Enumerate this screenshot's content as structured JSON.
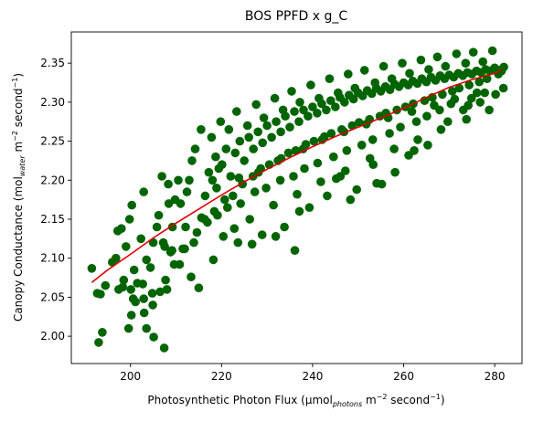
{
  "chart_data": {
    "type": "scatter",
    "title": "BOS PPFD x g_C",
    "xlabel": {
      "prefix": "Photosynthetic Photon Flux (µmol",
      "sub": "photons",
      "mid1": " m",
      "sup1": "−2",
      "mid2": " second",
      "sup2": "−1",
      "suffix": ")"
    },
    "ylabel": {
      "prefix": "Canopy Conductance (mol",
      "sub": "water",
      "mid1": " m",
      "sup1": "−2",
      "mid2": " second",
      "sup2": "−1",
      "suffix": ")"
    },
    "xlim": [
      187,
      286
    ],
    "ylim": [
      1.965,
      2.39
    ],
    "x_ticks": [
      200,
      220,
      240,
      260,
      280
    ],
    "y_ticks": [
      2.0,
      2.05,
      2.1,
      2.15,
      2.2,
      2.25,
      2.3,
      2.35
    ],
    "grid": false,
    "scatter_color": "#006400",
    "fit_color": "#e00000",
    "fit_curve": {
      "x": [
        191.5,
        195,
        200,
        205,
        210,
        215,
        220,
        225,
        230,
        235,
        240,
        245,
        250,
        255,
        260,
        265,
        270,
        275,
        280,
        281.5
      ],
      "y": [
        2.069,
        2.085,
        2.105,
        2.126,
        2.145,
        2.163,
        2.181,
        2.198,
        2.214,
        2.229,
        2.243,
        2.256,
        2.268,
        2.28,
        2.292,
        2.306,
        2.319,
        2.329,
        2.337,
        2.341
      ]
    },
    "points": {
      "x": [
        191.5,
        192.7,
        193.4,
        193.8,
        194.5,
        196.0,
        197.2,
        198.0,
        199.0,
        199.8,
        200.3,
        200.8,
        201.5,
        202.3,
        202.9,
        203.5,
        204.4,
        205.0,
        205.8,
        206.2,
        206.9,
        207.5,
        208.4,
        209.2,
        209.8,
        210.5,
        211.0,
        212.4,
        212.9,
        213.5,
        193.0,
        197.4,
        196.8,
        198.3,
        200.2,
        201.1,
        202.7,
        204.8,
        206.5,
        207.7,
        209.6,
        211.5,
        213.3,
        215.0,
        203.5,
        205.1,
        199.6,
        200.6,
        208.3,
        209.1,
        213.9,
        215.6,
        216.4,
        217.2,
        218.0,
        218.7,
        219.4,
        220.1,
        221.0,
        222.0,
        223.0,
        224.0,
        225.0,
        226.0,
        227.0,
        228.0,
        229.0,
        230.0,
        231.0,
        232.0,
        233.0,
        234.0,
        235.0,
        236.0,
        237.0,
        238.0,
        239.0,
        240.0,
        241.0,
        242.0,
        243.0,
        244.0,
        245.0,
        246.0,
        247.0,
        248.0,
        249.0,
        250.0,
        251.0,
        252.0,
        253.0,
        254.0,
        255.0,
        256.0,
        257.0,
        258.0,
        259.0,
        260.0,
        261.0,
        262.0,
        263.0,
        264.0,
        265.0,
        266.0,
        267.0,
        268.0,
        269.0,
        270.0,
        271.0,
        272.0,
        273.0,
        274.0,
        275.0,
        276.0,
        277.0,
        278.0,
        279.0,
        280.0,
        281.0,
        282.0,
        216.3,
        218.4,
        220.7,
        222.5,
        224.6,
        226.9,
        228.1,
        230.5,
        232.4,
        234.7,
        236.3,
        238.5,
        240.3,
        242.6,
        244.1,
        246.4,
        248.7,
        250.2,
        252.5,
        254.8,
        256.1,
        258.5,
        260.4,
        262.1,
        264.6,
        266.3,
        268.5,
        270.7,
        272.2,
        274.4,
        276.6,
        278.3,
        280.8,
        281.5,
        214.2,
        217.8,
        221.6,
        225.7,
        229.3,
        233.5,
        237.2,
        241.4,
        245.6,
        249.3,
        253.7,
        257.4,
        261.3,
        265.5,
        269.2,
        273.6,
        277.4,
        215.5,
        219.8,
        223.3,
        227.6,
        231.7,
        235.4,
        239.6,
        243.7,
        247.8,
        251.4,
        255.6,
        259.7,
        263.8,
        267.4,
        271.6,
        275.3,
        279.5,
        218.9,
        223.8,
        228.6,
        233.1,
        237.9,
        242.1,
        246.9,
        251.8,
        256.6,
        261.8,
        266.7,
        271.2,
        276.1,
        220.4,
        226.2,
        231.4,
        236.6,
        241.8,
        247.2,
        252.6,
        257.9,
        263.1,
        268.2,
        273.8,
        278.8,
        207.2,
        208.8,
        212.1,
        214.6,
        216.9,
        219.1,
        221.3,
        224.2,
        227.3,
        229.8,
        232.9,
        235.8,
        238.2,
        241.1,
        244.6,
        247.5,
        250.8,
        253.2,
        256.9,
        259.3,
        262.8,
        265.1,
        267.9,
        270.4,
        274.9,
        277.8,
        281.9,
        254.1,
        258.1,
        249.7,
        245.2,
        262.3,
        265.3,
        231.9,
        237.1,
        218.2,
        210.8,
        226.7,
        236.1,
        248.3,
        239.3,
        243.2,
        253.3,
        261.1,
        222.8,
        211.9,
        233.8,
        228.9,
        223.6,
        246.1,
        255.2,
        269.7,
        273.1,
        274.2,
        276.8,
        280.2,
        207.4,
        208.0,
        202.9,
        200.1,
        198.5,
        203.0,
        204.9
      ],
      "y": [
        2.087,
        2.055,
        2.054,
        2.005,
        2.065,
        2.095,
        2.135,
        2.138,
        2.115,
        2.15,
        2.168,
        2.085,
        2.068,
        2.125,
        2.185,
        2.098,
        2.088,
        2.12,
        2.14,
        2.155,
        2.205,
        2.115,
        2.17,
        2.14,
        2.175,
        2.2,
        2.17,
        2.185,
        2.2,
        2.225,
        1.992,
        2.06,
        2.1,
        2.063,
        2.027,
        2.044,
        2.067,
        2.055,
        2.057,
        2.072,
        2.092,
        2.112,
        2.076,
        2.062,
        2.01,
        1.999,
        2.01,
        2.048,
        2.195,
        2.11,
        2.12,
        2.152,
        2.18,
        2.21,
        2.2,
        2.23,
        2.215,
        2.22,
        2.24,
        2.205,
        2.235,
        2.25,
        2.225,
        2.255,
        2.24,
        2.262,
        2.248,
        2.27,
        2.255,
        2.275,
        2.262,
        2.282,
        2.268,
        2.288,
        2.275,
        2.29,
        2.282,
        2.294,
        2.286,
        2.298,
        2.29,
        2.302,
        2.294,
        2.306,
        2.3,
        2.309,
        2.304,
        2.312,
        2.308,
        2.315,
        2.311,
        2.318,
        2.314,
        2.32,
        2.316,
        2.323,
        2.32,
        2.325,
        2.322,
        2.327,
        2.324,
        2.33,
        2.326,
        2.332,
        2.328,
        2.334,
        2.33,
        2.335,
        2.332,
        2.337,
        2.334,
        2.338,
        2.336,
        2.34,
        2.338,
        2.342,
        2.34,
        2.344,
        2.341,
        2.345,
        2.15,
        2.16,
        2.175,
        2.18,
        2.195,
        2.205,
        2.21,
        2.22,
        2.225,
        2.235,
        2.238,
        2.246,
        2.25,
        2.256,
        2.26,
        2.265,
        2.27,
        2.274,
        2.278,
        2.282,
        2.286,
        2.29,
        2.294,
        2.298,
        2.302,
        2.306,
        2.31,
        2.314,
        2.318,
        2.322,
        2.326,
        2.33,
        2.336,
        2.34,
        2.24,
        2.255,
        2.265,
        2.27,
        2.28,
        2.29,
        2.3,
        2.305,
        2.312,
        2.318,
        2.325,
        2.33,
        2.337,
        2.342,
        2.346,
        2.35,
        2.352,
        2.265,
        2.275,
        2.288,
        2.297,
        2.305,
        2.314,
        2.322,
        2.33,
        2.336,
        2.341,
        2.346,
        2.35,
        2.354,
        2.358,
        2.362,
        2.364,
        2.366,
        2.19,
        2.203,
        2.215,
        2.228,
        2.24,
        2.252,
        2.262,
        2.272,
        2.28,
        2.288,
        2.296,
        2.304,
        2.312,
        2.128,
        2.15,
        2.168,
        2.182,
        2.198,
        2.212,
        2.228,
        2.24,
        2.252,
        2.265,
        2.278,
        2.29,
        2.12,
        2.108,
        2.14,
        2.133,
        2.146,
        2.155,
        2.165,
        2.17,
        2.185,
        2.19,
        2.2,
        2.205,
        2.215,
        2.222,
        2.23,
        2.238,
        2.245,
        2.252,
        2.26,
        2.268,
        2.275,
        2.282,
        2.29,
        2.298,
        2.305,
        2.312,
        2.318,
        2.196,
        2.21,
        2.188,
        2.202,
        2.238,
        2.245,
        2.128,
        2.16,
        2.098,
        2.092,
        2.118,
        2.11,
        2.175,
        2.165,
        2.18,
        2.22,
        2.232,
        2.138,
        2.112,
        2.14,
        2.13,
        2.12,
        2.205,
        2.195,
        2.275,
        2.29,
        2.296,
        2.3,
        2.31,
        1.985,
        2.06,
        2.048,
        2.06,
        2.072,
        2.03,
        2.04
      ]
    }
  }
}
